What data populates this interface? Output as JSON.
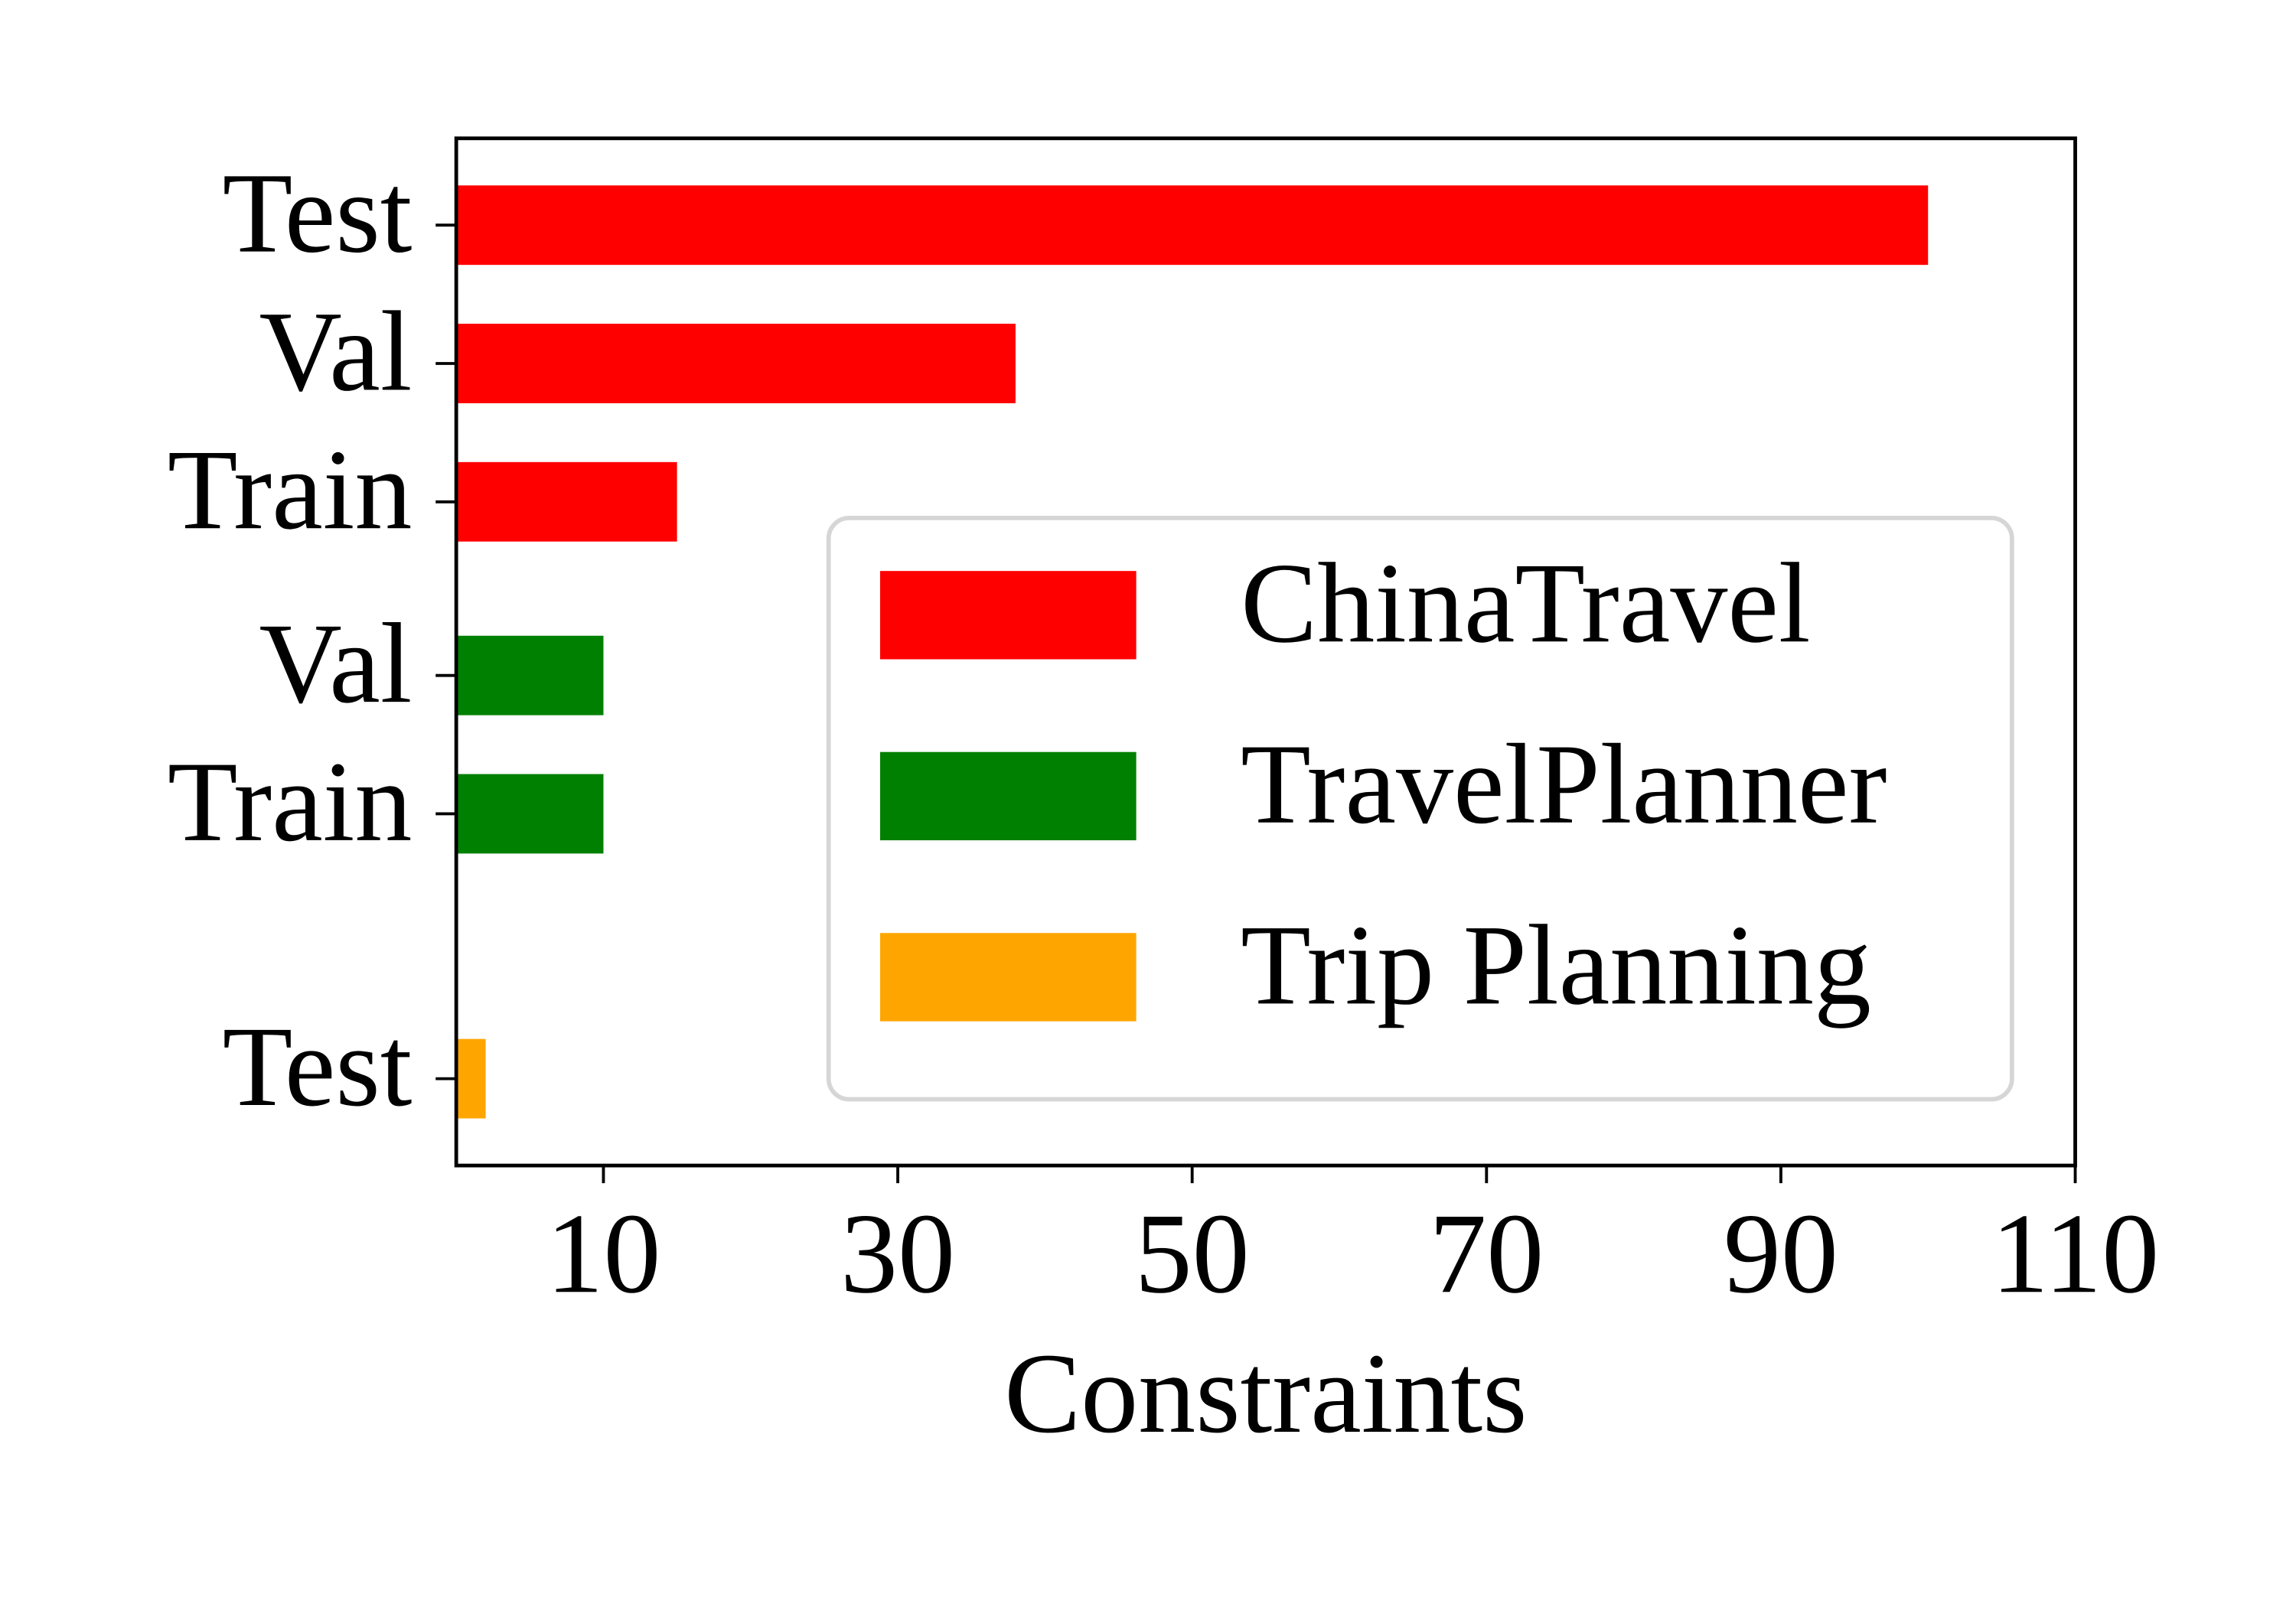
{
  "chart_data": {
    "type": "barh",
    "xlabel": "Constraints",
    "xlim": [
      0,
      110
    ],
    "xticks": [
      10,
      30,
      50,
      70,
      90,
      110
    ],
    "legend": "lower right",
    "series": [
      {
        "name": "ChinaTravel",
        "color": "#ff0000",
        "categories": [
          "Test",
          "Val",
          "Train"
        ],
        "values": [
          100,
          38,
          15
        ]
      },
      {
        "name": "TravelPlanner",
        "color": "#008000",
        "categories": [
          "Val",
          "Train"
        ],
        "values": [
          10,
          10
        ]
      },
      {
        "name": "Trip Planning",
        "color": "#ffa500",
        "categories": [
          "Test"
        ],
        "values": [
          2
        ]
      }
    ]
  }
}
